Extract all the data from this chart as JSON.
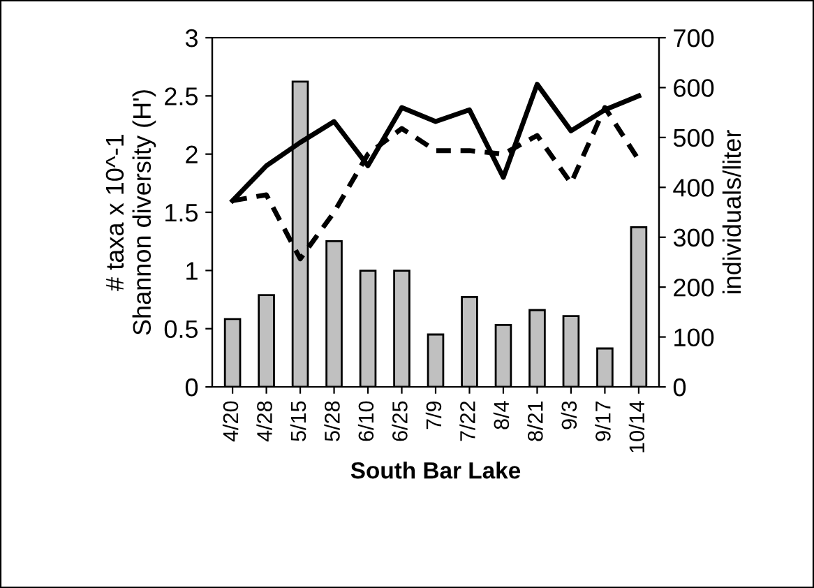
{
  "chart_data": {
    "type": "bar",
    "xlabel": "South Bar Lake",
    "ylabel": "# taxa x 10^-1\nShannon diversity (H')",
    "y2label": "individuals/liter",
    "categories": [
      "4/20",
      "4/28",
      "5/15",
      "5/28",
      "6/10",
      "6/25",
      "7/9",
      "7/22",
      "8/4",
      "8/21",
      "9/3",
      "9/17",
      "10/14"
    ],
    "series": [
      {
        "axis": "y2",
        "color": "#c0c0c0",
        "values": [
          136,
          184,
          612,
          292,
          233,
          233,
          105,
          180,
          124,
          154,
          142,
          77,
          320
        ]
      },
      {
        "type": "line",
        "color": "#000000",
        "line_style": "solid",
        "values": [
          1.6,
          1.9,
          2.1,
          2.28,
          1.9,
          2.4,
          2.28,
          2.38,
          1.8,
          2.6,
          2.2,
          2.38,
          2.5
        ]
      },
      {
        "type": "line",
        "color": "#000000",
        "line_style": "dashed",
        "values": [
          1.6,
          1.65,
          1.1,
          1.5,
          2.0,
          2.22,
          2.03,
          2.03,
          2.0,
          2.16,
          1.75,
          2.4,
          1.95
        ]
      }
    ],
    "ylim": [
      0,
      3
    ],
    "yticks": [
      0,
      0.5,
      1,
      1.5,
      2,
      2.5,
      3
    ],
    "y2lim": [
      0,
      700
    ],
    "y2ticks": [
      0,
      100,
      200,
      300,
      400,
      500,
      600,
      700
    ],
    "grid": false,
    "legend": false
  }
}
